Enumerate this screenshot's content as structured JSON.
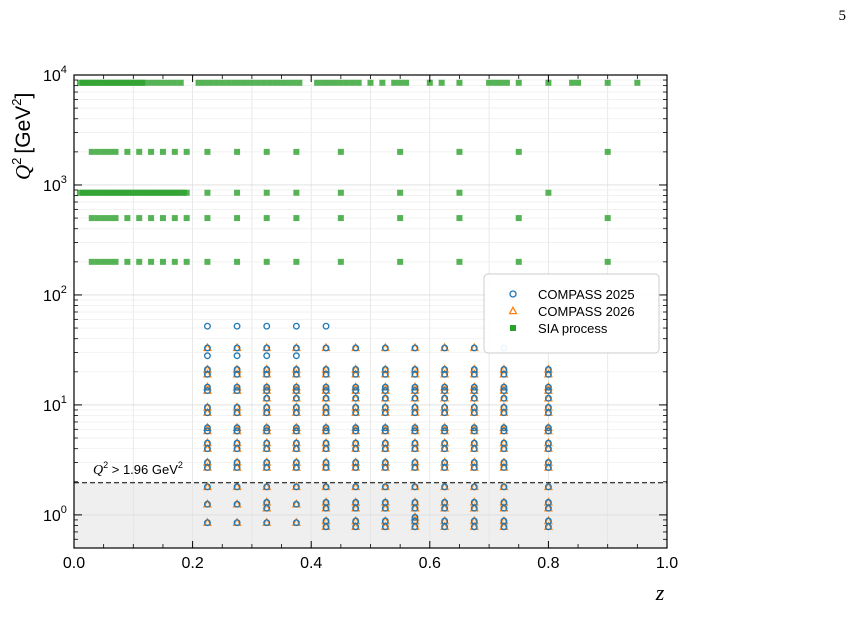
{
  "page": {
    "page_number": "5"
  },
  "chart_data": {
    "type": "scatter",
    "title": "",
    "xlabel": "z",
    "ylabel": "Q^2 [GeV^2]",
    "ylabel_parts": {
      "symbol": "Q",
      "unit_open": "[GeV",
      "unit_close": "]",
      "power": "2"
    },
    "xscale": "linear",
    "yscale": "log",
    "xlim": [
      0.0,
      1.0
    ],
    "ylim": [
      0.5,
      10000
    ],
    "grid": true,
    "legend_position": "center-right",
    "x_ticks": [
      "0.0",
      "0.2",
      "0.4",
      "0.6",
      "0.8",
      "1.0"
    ],
    "y_ticks": [
      {
        "base": "10",
        "exp": "0",
        "value": 1
      },
      {
        "base": "10",
        "exp": "1",
        "value": 10
      },
      {
        "base": "10",
        "exp": "2",
        "value": 100
      },
      {
        "base": "10",
        "exp": "3",
        "value": 1000
      },
      {
        "base": "10",
        "exp": "4",
        "value": 10000
      }
    ],
    "cut": {
      "value": 1.96,
      "label_sym": "Q",
      "label_text": " > 1.96 GeV",
      "label_power": "2",
      "shaded_region": "below cut",
      "shade_color": "#efefef"
    },
    "series": [
      {
        "name": "COMPASS 2025",
        "marker": "circle-open",
        "color": "#1f77b4",
        "z": [
          0.225,
          0.275,
          0.325,
          0.375,
          0.425,
          0.475,
          0.525,
          0.575,
          0.625,
          0.675,
          0.725,
          0.8
        ],
        "q2_by_z": [
          [
            0.85,
            1.25,
            1.8,
            2.7,
            3.0,
            4.0,
            4.5,
            5.8,
            6.2,
            8.5,
            9.5,
            13.5,
            14.5,
            19.0,
            21.0,
            28.0,
            33.0,
            52.0
          ],
          [
            0.85,
            1.25,
            1.8,
            2.7,
            3.0,
            4.0,
            4.5,
            5.8,
            6.2,
            8.5,
            9.5,
            13.5,
            14.5,
            19.0,
            21.0,
            28.0,
            33.0,
            52.0
          ],
          [
            0.85,
            1.15,
            1.3,
            1.8,
            2.7,
            3.0,
            4.0,
            4.5,
            5.8,
            6.2,
            8.5,
            9.5,
            11.5,
            13.5,
            14.5,
            19.0,
            21.0,
            28.0,
            33.0,
            52.0
          ],
          [
            0.85,
            1.25,
            1.8,
            2.7,
            3.0,
            4.0,
            4.5,
            5.8,
            6.2,
            8.5,
            9.5,
            11.5,
            13.5,
            14.5,
            19.0,
            21.0,
            28.0,
            33.0,
            52.0
          ],
          [
            0.78,
            0.88,
            1.15,
            1.3,
            1.8,
            2.7,
            3.0,
            4.0,
            4.5,
            5.8,
            6.2,
            8.5,
            9.5,
            11.5,
            13.5,
            14.5,
            19.0,
            21.0,
            33.0,
            52.0
          ],
          [
            0.78,
            0.88,
            1.15,
            1.3,
            1.8,
            2.7,
            3.0,
            4.0,
            4.5,
            5.8,
            6.2,
            8.5,
            9.5,
            11.5,
            13.5,
            14.5,
            19.0,
            21.0,
            33.0
          ],
          [
            0.78,
            0.88,
            1.15,
            1.3,
            1.8,
            2.7,
            3.0,
            4.0,
            4.5,
            5.8,
            6.2,
            8.5,
            9.5,
            11.5,
            13.5,
            14.5,
            19.0,
            21.0,
            33.0
          ],
          [
            0.78,
            0.88,
            0.95,
            1.15,
            1.3,
            1.8,
            2.7,
            3.0,
            4.0,
            4.5,
            5.8,
            6.2,
            8.5,
            9.5,
            11.5,
            13.5,
            14.5,
            19.0,
            21.0,
            33.0
          ],
          [
            0.78,
            0.88,
            1.15,
            1.3,
            1.8,
            2.7,
            3.0,
            4.0,
            4.5,
            5.8,
            6.2,
            8.5,
            9.5,
            11.5,
            13.5,
            14.5,
            19.0,
            21.0,
            33.0
          ],
          [
            0.78,
            0.88,
            1.15,
            1.3,
            1.8,
            2.7,
            3.0,
            4.0,
            4.5,
            5.8,
            6.2,
            8.5,
            9.5,
            11.5,
            13.5,
            14.5,
            19.0,
            21.0,
            33.0
          ],
          [
            0.78,
            0.88,
            1.15,
            1.3,
            1.8,
            2.7,
            3.0,
            4.0,
            4.5,
            5.8,
            6.2,
            8.5,
            9.5,
            11.5,
            13.5,
            14.5,
            19.0,
            21.0,
            33.0
          ],
          [
            0.78,
            0.88,
            1.15,
            1.3,
            1.8,
            2.7,
            3.0,
            4.0,
            4.5,
            5.8,
            6.2,
            8.5,
            9.5,
            11.5,
            13.5,
            14.5,
            19.0,
            21.0
          ]
        ]
      },
      {
        "name": "COMPASS 2026",
        "marker": "triangle-open",
        "color": "#ff7f0e",
        "z": [
          0.225,
          0.275,
          0.325,
          0.375,
          0.425,
          0.475,
          0.525,
          0.575,
          0.625,
          0.675,
          0.725,
          0.8
        ],
        "q2_by_z": [
          [
            0.85,
            1.25,
            1.8,
            2.7,
            3.0,
            4.0,
            4.5,
            5.8,
            6.2,
            8.5,
            9.5,
            13.5,
            14.5,
            19.0,
            21.0,
            33.0
          ],
          [
            0.85,
            1.25,
            1.8,
            2.7,
            3.0,
            4.0,
            4.5,
            5.8,
            6.2,
            8.5,
            9.5,
            13.5,
            14.5,
            19.0,
            21.0,
            33.0
          ],
          [
            0.85,
            1.15,
            1.3,
            1.8,
            2.7,
            3.0,
            4.0,
            4.5,
            5.8,
            6.2,
            8.5,
            9.5,
            11.5,
            13.5,
            14.5,
            19.0,
            21.0,
            33.0
          ],
          [
            0.85,
            1.25,
            1.8,
            2.7,
            3.0,
            4.0,
            4.5,
            5.8,
            6.2,
            8.5,
            9.5,
            11.5,
            13.5,
            14.5,
            19.0,
            21.0,
            33.0
          ],
          [
            0.78,
            0.88,
            1.15,
            1.3,
            1.8,
            2.7,
            3.0,
            4.0,
            4.5,
            5.8,
            6.2,
            8.5,
            9.5,
            11.5,
            13.5,
            14.5,
            19.0,
            21.0,
            33.0
          ],
          [
            0.78,
            0.88,
            1.15,
            1.3,
            1.8,
            2.7,
            3.0,
            4.0,
            4.5,
            5.8,
            6.2,
            8.5,
            9.5,
            11.5,
            13.5,
            14.5,
            19.0,
            21.0,
            33.0
          ],
          [
            0.78,
            0.88,
            1.15,
            1.3,
            1.8,
            2.7,
            3.0,
            4.0,
            4.5,
            5.8,
            6.2,
            8.5,
            9.5,
            11.5,
            13.5,
            14.5,
            19.0,
            21.0,
            33.0
          ],
          [
            0.78,
            0.88,
            0.95,
            1.15,
            1.3,
            1.8,
            2.7,
            3.0,
            4.0,
            4.5,
            5.8,
            6.2,
            8.5,
            9.5,
            11.5,
            13.5,
            14.5,
            19.0,
            21.0,
            33.0
          ],
          [
            0.78,
            0.88,
            1.15,
            1.3,
            1.8,
            2.7,
            3.0,
            4.0,
            4.5,
            5.8,
            6.2,
            8.5,
            9.5,
            11.5,
            13.5,
            14.5,
            19.0,
            21.0,
            33.0
          ],
          [
            0.78,
            0.88,
            1.15,
            1.3,
            1.8,
            2.7,
            3.0,
            4.0,
            4.5,
            5.8,
            6.2,
            8.5,
            9.5,
            11.5,
            13.5,
            14.5,
            19.0,
            21.0,
            33.0
          ],
          [
            0.78,
            0.88,
            1.15,
            1.3,
            1.8,
            2.7,
            3.0,
            4.0,
            4.5,
            5.8,
            6.2,
            8.5,
            9.5,
            11.5,
            13.5,
            14.5,
            19.0,
            21.0
          ],
          [
            0.78,
            0.88,
            1.15,
            1.3,
            1.8,
            2.7,
            3.0,
            4.0,
            4.5,
            5.8,
            6.2,
            8.5,
            9.5,
            11.5,
            13.5,
            14.5,
            19.0,
            21.0
          ]
        ]
      },
      {
        "name": "SIA process",
        "marker": "square-filled",
        "color": "#2ca02c",
        "q2_rows": [
          {
            "q2": 8500,
            "z": [
              0.01,
              0.015,
              0.02,
              0.025,
              0.03,
              0.035,
              0.04,
              0.045,
              0.05,
              0.055,
              0.06,
              0.065,
              0.07,
              0.075,
              0.08,
              0.085,
              0.09,
              0.095,
              0.1,
              0.105,
              0.11,
              0.115,
              0.12,
              0.13,
              0.14,
              0.15,
              0.16,
              0.17,
              0.18,
              0.21,
              0.22,
              0.23,
              0.24,
              0.25,
              0.26,
              0.27,
              0.28,
              0.29,
              0.3,
              0.31,
              0.32,
              0.33,
              0.34,
              0.35,
              0.36,
              0.37,
              0.38,
              0.41,
              0.42,
              0.43,
              0.44,
              0.45,
              0.46,
              0.47,
              0.48,
              0.5,
              0.52,
              0.54,
              0.55,
              0.56,
              0.6,
              0.62,
              0.65,
              0.7,
              0.71,
              0.72,
              0.73,
              0.75,
              0.8,
              0.84,
              0.85,
              0.9,
              0.95
            ]
          },
          {
            "q2": 2000,
            "z": [
              0.03,
              0.04,
              0.05,
              0.06,
              0.07,
              0.09,
              0.11,
              0.13,
              0.15,
              0.17,
              0.19,
              0.225,
              0.275,
              0.325,
              0.375,
              0.45,
              0.55,
              0.65,
              0.75,
              0.9
            ]
          },
          {
            "q2": 850,
            "z": [
              0.01,
              0.015,
              0.02,
              0.025,
              0.03,
              0.035,
              0.04,
              0.045,
              0.05,
              0.055,
              0.06,
              0.065,
              0.07,
              0.075,
              0.08,
              0.085,
              0.09,
              0.095,
              0.1,
              0.105,
              0.11,
              0.115,
              0.12,
              0.125,
              0.13,
              0.135,
              0.14,
              0.145,
              0.15,
              0.155,
              0.16,
              0.165,
              0.17,
              0.175,
              0.18,
              0.185,
              0.19,
              0.225,
              0.275,
              0.325,
              0.375,
              0.45,
              0.55,
              0.65,
              0.8
            ]
          },
          {
            "q2": 500,
            "z": [
              0.03,
              0.04,
              0.05,
              0.06,
              0.07,
              0.09,
              0.11,
              0.13,
              0.15,
              0.17,
              0.19,
              0.225,
              0.275,
              0.325,
              0.375,
              0.45,
              0.55,
              0.65,
              0.75,
              0.9
            ]
          },
          {
            "q2": 200,
            "z": [
              0.03,
              0.04,
              0.05,
              0.06,
              0.07,
              0.09,
              0.11,
              0.13,
              0.15,
              0.17,
              0.19,
              0.225,
              0.275,
              0.325,
              0.375,
              0.45,
              0.55,
              0.65,
              0.75,
              0.9
            ]
          }
        ]
      }
    ]
  }
}
